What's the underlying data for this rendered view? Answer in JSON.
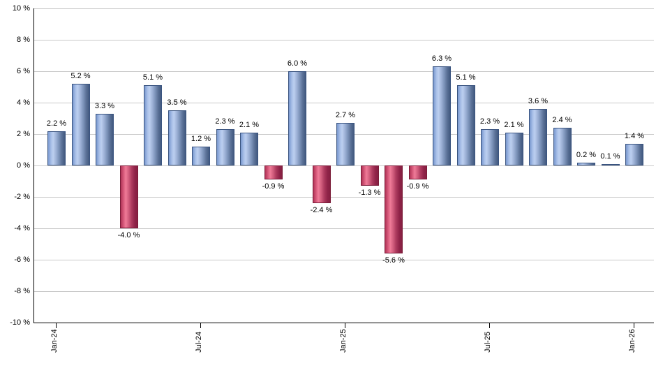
{
  "chart_data": {
    "type": "bar",
    "title": "",
    "values": [
      2.2,
      5.2,
      3.3,
      -4.0,
      5.1,
      3.5,
      1.2,
      2.3,
      2.1,
      -0.9,
      6.0,
      -2.4,
      2.7,
      -1.3,
      -5.6,
      -0.9,
      6.3,
      5.1,
      2.3,
      2.1,
      3.6,
      2.4,
      0.2,
      0.1,
      1.4
    ],
    "bar_labels": [
      "2.2 %",
      "5.2 %",
      "3.3 %",
      "-4.0 %",
      "5.1 %",
      "3.5 %",
      "1.2 %",
      "2.3 %",
      "2.1 %",
      "-0.9 %",
      "6.0 %",
      "-2.4 %",
      "2.7 %",
      "-1.3 %",
      "-5.6 %",
      "-0.9 %",
      "6.3 %",
      "5.1 %",
      "2.3 %",
      "2.1 %",
      "3.6 %",
      "2.4 %",
      "0.2 %",
      "0.1 %",
      "1.4 %"
    ],
    "x_tick_labels": [
      "Jan-24",
      "Jul-24",
      "Jan-25",
      "Jul-25",
      "Jan-26"
    ],
    "x_tick_bar_indices": [
      0,
      6,
      12,
      18,
      24
    ],
    "y_tick_labels": [
      "10 %",
      "8 %",
      "6 %",
      "4 %",
      "2 %",
      "0 %",
      "-2 %",
      "-4 %",
      "-6 %",
      "-8 %",
      "-10 %"
    ],
    "ylim": [
      -10,
      10
    ],
    "grid": true,
    "legend_position": "none",
    "colors": {
      "positive_bar": "#7b9ad4",
      "positive_bar_highlight": "#bccff0",
      "positive_bar_dark": "#42597f",
      "negative_bar": "#c04768",
      "negative_bar_highlight": "#ef7b98",
      "negative_bar_dark": "#871f42",
      "gridline": "#c9c9c9",
      "axis": "#000000",
      "text": "#000000",
      "background": "#ffffff"
    }
  }
}
